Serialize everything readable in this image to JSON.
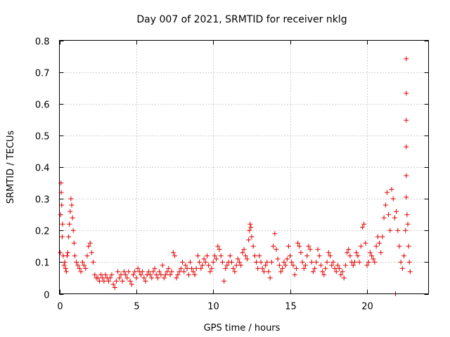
{
  "chart_data": {
    "type": "scatter",
    "title": "Day 007 of 2021, SRMTID for receiver nklg",
    "xlabel": "GPS time / hours",
    "ylabel": "SRMTID / TECUs",
    "xlim": [
      0,
      24
    ],
    "ylim": [
      0,
      0.8
    ],
    "xticks": [
      0,
      5,
      10,
      15,
      20
    ],
    "xtick_labels": [
      "0",
      "5",
      "10",
      "15",
      "20"
    ],
    "yticks": [
      0,
      0.1,
      0.2,
      0.3,
      0.4,
      0.5,
      0.6,
      0.7,
      0.8
    ],
    "ytick_labels": [
      "0",
      "0.1",
      "0.2",
      "0.3",
      "0.4",
      "0.5",
      "0.6",
      "0.7",
      "0.8"
    ],
    "grid": true,
    "marker": "+",
    "color": "#e00000",
    "series": [
      {
        "name": "SRMTID",
        "points": [
          [
            0.05,
            0.13
          ],
          [
            0.08,
            0.25
          ],
          [
            0.1,
            0.35
          ],
          [
            0.12,
            0.32
          ],
          [
            0.15,
            0.28
          ],
          [
            0.18,
            0.18
          ],
          [
            0.2,
            0.22
          ],
          [
            0.25,
            0.12
          ],
          [
            0.3,
            0.09
          ],
          [
            0.35,
            0.1
          ],
          [
            0.4,
            0.08
          ],
          [
            0.45,
            0.07
          ],
          [
            0.5,
            0.12
          ],
          [
            0.55,
            0.13
          ],
          [
            0.6,
            0.18
          ],
          [
            0.65,
            0.22
          ],
          [
            0.7,
            0.26
          ],
          [
            0.75,
            0.3
          ],
          [
            0.8,
            0.28
          ],
          [
            0.85,
            0.24
          ],
          [
            0.9,
            0.2
          ],
          [
            0.95,
            0.16
          ],
          [
            1.0,
            0.12
          ],
          [
            1.1,
            0.1
          ],
          [
            1.2,
            0.09
          ],
          [
            1.3,
            0.08
          ],
          [
            1.4,
            0.07
          ],
          [
            1.5,
            0.1
          ],
          [
            1.6,
            0.09
          ],
          [
            1.7,
            0.08
          ],
          [
            1.8,
            0.12
          ],
          [
            1.9,
            0.15
          ],
          [
            2.0,
            0.16
          ],
          [
            2.1,
            0.13
          ],
          [
            2.2,
            0.1
          ],
          [
            2.3,
            0.06
          ],
          [
            2.4,
            0.05
          ],
          [
            2.5,
            0.05
          ],
          [
            2.6,
            0.04
          ],
          [
            2.7,
            0.06
          ],
          [
            2.8,
            0.05
          ],
          [
            2.9,
            0.04
          ],
          [
            3.0,
            0.06
          ],
          [
            3.1,
            0.05
          ],
          [
            3.2,
            0.04
          ],
          [
            3.3,
            0.05
          ],
          [
            3.4,
            0.06
          ],
          [
            3.5,
            0.03
          ],
          [
            3.6,
            0.02
          ],
          [
            3.7,
            0.04
          ],
          [
            3.8,
            0.07
          ],
          [
            3.9,
            0.05
          ],
          [
            4.0,
            0.06
          ],
          [
            4.1,
            0.04
          ],
          [
            4.2,
            0.07
          ],
          [
            4.3,
            0.06
          ],
          [
            4.4,
            0.05
          ],
          [
            4.5,
            0.07
          ],
          [
            4.6,
            0.04
          ],
          [
            4.7,
            0.03
          ],
          [
            4.8,
            0.06
          ],
          [
            4.9,
            0.07
          ],
          [
            5.0,
            0.05
          ],
          [
            5.1,
            0.08
          ],
          [
            5.2,
            0.07
          ],
          [
            5.3,
            0.06
          ],
          [
            5.4,
            0.07
          ],
          [
            5.5,
            0.05
          ],
          [
            5.6,
            0.04
          ],
          [
            5.7,
            0.06
          ],
          [
            5.8,
            0.07
          ],
          [
            5.9,
            0.06
          ],
          [
            6.0,
            0.05
          ],
          [
            6.1,
            0.07
          ],
          [
            6.2,
            0.08
          ],
          [
            6.3,
            0.06
          ],
          [
            6.4,
            0.05
          ],
          [
            6.5,
            0.07
          ],
          [
            6.6,
            0.06
          ],
          [
            6.7,
            0.09
          ],
          [
            6.8,
            0.05
          ],
          [
            6.9,
            0.06
          ],
          [
            7.0,
            0.07
          ],
          [
            7.1,
            0.08
          ],
          [
            7.2,
            0.06
          ],
          [
            7.3,
            0.07
          ],
          [
            7.4,
            0.13
          ],
          [
            7.5,
            0.12
          ],
          [
            7.6,
            0.05
          ],
          [
            7.7,
            0.06
          ],
          [
            7.8,
            0.07
          ],
          [
            7.9,
            0.08
          ],
          [
            8.0,
            0.1
          ],
          [
            8.1,
            0.07
          ],
          [
            8.2,
            0.09
          ],
          [
            8.3,
            0.08
          ],
          [
            8.4,
            0.06
          ],
          [
            8.5,
            0.1
          ],
          [
            8.6,
            0.08
          ],
          [
            8.7,
            0.07
          ],
          [
            8.8,
            0.06
          ],
          [
            8.9,
            0.08
          ],
          [
            9.0,
            0.12
          ],
          [
            9.1,
            0.1
          ],
          [
            9.2,
            0.08
          ],
          [
            9.3,
            0.09
          ],
          [
            9.4,
            0.11
          ],
          [
            9.5,
            0.1
          ],
          [
            9.6,
            0.12
          ],
          [
            9.7,
            0.09
          ],
          [
            9.8,
            0.07
          ],
          [
            9.9,
            0.08
          ],
          [
            10.0,
            0.1
          ],
          [
            10.1,
            0.12
          ],
          [
            10.2,
            0.11
          ],
          [
            10.3,
            0.15
          ],
          [
            10.4,
            0.14
          ],
          [
            10.5,
            0.12
          ],
          [
            10.6,
            0.1
          ],
          [
            10.7,
            0.04
          ],
          [
            10.8,
            0.08
          ],
          [
            10.9,
            0.09
          ],
          [
            11.0,
            0.1
          ],
          [
            11.1,
            0.12
          ],
          [
            11.2,
            0.1
          ],
          [
            11.3,
            0.08
          ],
          [
            11.4,
            0.07
          ],
          [
            11.5,
            0.09
          ],
          [
            11.6,
            0.11
          ],
          [
            11.7,
            0.1
          ],
          [
            11.8,
            0.09
          ],
          [
            11.9,
            0.13
          ],
          [
            12.0,
            0.14
          ],
          [
            12.1,
            0.12
          ],
          [
            12.2,
            0.11
          ],
          [
            12.3,
            0.17
          ],
          [
            12.35,
            0.2
          ],
          [
            12.4,
            0.22
          ],
          [
            12.45,
            0.21
          ],
          [
            12.5,
            0.18
          ],
          [
            12.6,
            0.15
          ],
          [
            12.7,
            0.12
          ],
          [
            12.8,
            0.1
          ],
          [
            12.9,
            0.08
          ],
          [
            13.0,
            0.12
          ],
          [
            13.1,
            0.1
          ],
          [
            13.2,
            0.08
          ],
          [
            13.3,
            0.07
          ],
          [
            13.4,
            0.09
          ],
          [
            13.5,
            0.1
          ],
          [
            13.6,
            0.07
          ],
          [
            13.7,
            0.05
          ],
          [
            13.8,
            0.1
          ],
          [
            13.9,
            0.15
          ],
          [
            14.0,
            0.19
          ],
          [
            14.1,
            0.14
          ],
          [
            14.2,
            0.11
          ],
          [
            14.3,
            0.09
          ],
          [
            14.4,
            0.07
          ],
          [
            14.5,
            0.08
          ],
          [
            14.6,
            0.1
          ],
          [
            14.7,
            0.09
          ],
          [
            14.8,
            0.11
          ],
          [
            14.9,
            0.15
          ],
          [
            15.0,
            0.12
          ],
          [
            15.1,
            0.1
          ],
          [
            15.2,
            0.09
          ],
          [
            15.3,
            0.06
          ],
          [
            15.4,
            0.08
          ],
          [
            15.5,
            0.16
          ],
          [
            15.6,
            0.15
          ],
          [
            15.7,
            0.13
          ],
          [
            15.8,
            0.1
          ],
          [
            15.9,
            0.08
          ],
          [
            16.0,
            0.09
          ],
          [
            16.1,
            0.12
          ],
          [
            16.2,
            0.15
          ],
          [
            16.3,
            0.14
          ],
          [
            16.4,
            0.1
          ],
          [
            16.5,
            0.07
          ],
          [
            16.6,
            0.08
          ],
          [
            16.7,
            0.1
          ],
          [
            16.8,
            0.14
          ],
          [
            16.9,
            0.12
          ],
          [
            17.0,
            0.09
          ],
          [
            17.1,
            0.07
          ],
          [
            17.2,
            0.06
          ],
          [
            17.3,
            0.08
          ],
          [
            17.4,
            0.1
          ],
          [
            17.5,
            0.13
          ],
          [
            17.6,
            0.12
          ],
          [
            17.7,
            0.09
          ],
          [
            17.8,
            0.1
          ],
          [
            17.9,
            0.08
          ],
          [
            18.0,
            0.07
          ],
          [
            18.1,
            0.09
          ],
          [
            18.2,
            0.08
          ],
          [
            18.3,
            0.06
          ],
          [
            18.4,
            0.07
          ],
          [
            18.5,
            0.05
          ],
          [
            18.6,
            0.09
          ],
          [
            18.7,
            0.13
          ],
          [
            18.8,
            0.14
          ],
          [
            18.9,
            0.12
          ],
          [
            19.0,
            0.1
          ],
          [
            19.1,
            0.09
          ],
          [
            19.2,
            0.1
          ],
          [
            19.3,
            0.13
          ],
          [
            19.4,
            0.12
          ],
          [
            19.5,
            0.1
          ],
          [
            19.6,
            0.15
          ],
          [
            19.7,
            0.21
          ],
          [
            19.8,
            0.22
          ],
          [
            19.9,
            0.16
          ],
          [
            20.0,
            0.09
          ],
          [
            20.1,
            0.1
          ],
          [
            20.2,
            0.13
          ],
          [
            20.3,
            0.12
          ],
          [
            20.4,
            0.11
          ],
          [
            20.5,
            0.1
          ],
          [
            20.6,
            0.15
          ],
          [
            20.7,
            0.18
          ],
          [
            20.8,
            0.16
          ],
          [
            20.9,
            0.13
          ],
          [
            21.0,
            0.18
          ],
          [
            21.1,
            0.24
          ],
          [
            21.2,
            0.28
          ],
          [
            21.3,
            0.32
          ],
          [
            21.4,
            0.25
          ],
          [
            21.5,
            0.2
          ],
          [
            21.6,
            0.33
          ],
          [
            21.7,
            0.3
          ],
          [
            21.8,
            0.24
          ],
          [
            21.85,
            0.0
          ],
          [
            21.9,
            0.26
          ],
          [
            22.0,
            0.2
          ],
          [
            22.1,
            0.15
          ],
          [
            22.2,
            0.1
          ],
          [
            22.3,
            0.08
          ],
          [
            22.4,
            0.12
          ],
          [
            22.5,
            0.2
          ],
          [
            22.55,
            0.742
          ],
          [
            22.55,
            0.633
          ],
          [
            22.55,
            0.548
          ],
          [
            22.55,
            0.464
          ],
          [
            22.55,
            0.373
          ],
          [
            22.55,
            0.305
          ],
          [
            22.6,
            0.25
          ],
          [
            22.65,
            0.22
          ],
          [
            22.7,
            0.15
          ],
          [
            22.75,
            0.1
          ],
          [
            22.8,
            0.07
          ]
        ]
      }
    ]
  }
}
